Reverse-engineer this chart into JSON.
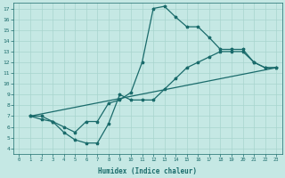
{
  "xlabel": "Humidex (Indice chaleur)",
  "xlim": [
    -0.5,
    23.5
  ],
  "ylim": [
    3.5,
    17.5
  ],
  "xticks": [
    0,
    1,
    2,
    3,
    4,
    5,
    6,
    7,
    8,
    9,
    10,
    11,
    12,
    13,
    14,
    15,
    16,
    17,
    18,
    19,
    20,
    21,
    22,
    23
  ],
  "yticks": [
    4,
    5,
    6,
    7,
    8,
    9,
    10,
    11,
    12,
    13,
    14,
    15,
    16,
    17
  ],
  "bg_color": "#c5e8e4",
  "line_color": "#1a6b6b",
  "grid_color": "#a8d4ce",
  "curve1_x": [
    1,
    2,
    3,
    4,
    5,
    6,
    7,
    8,
    9,
    10,
    11,
    12,
    13,
    14,
    15,
    16,
    17,
    18,
    19,
    20,
    21,
    22,
    23
  ],
  "curve1_y": [
    7,
    7,
    6.5,
    6,
    5.5,
    6.5,
    6.5,
    8.2,
    8.5,
    9.2,
    12,
    17,
    17.2,
    16.2,
    15.3,
    15.3,
    14.3,
    13.2,
    13.2,
    13.2,
    12,
    11.5,
    11.5
  ],
  "curve2_x": [
    1,
    2,
    3,
    4,
    5,
    6,
    7,
    8,
    9,
    10,
    11,
    12,
    13,
    14,
    15,
    16,
    17,
    18,
    19,
    20,
    21,
    22,
    23
  ],
  "curve2_y": [
    7,
    6.7,
    6.5,
    5.5,
    4.8,
    4.5,
    4.5,
    6.3,
    9.0,
    8.5,
    8.5,
    8.5,
    9.5,
    10.5,
    11.5,
    12,
    12.5,
    13,
    13,
    13,
    12,
    11.5,
    11.5
  ],
  "curve3_x": [
    1,
    23
  ],
  "curve3_y": [
    7,
    11.5
  ],
  "marker": "*"
}
